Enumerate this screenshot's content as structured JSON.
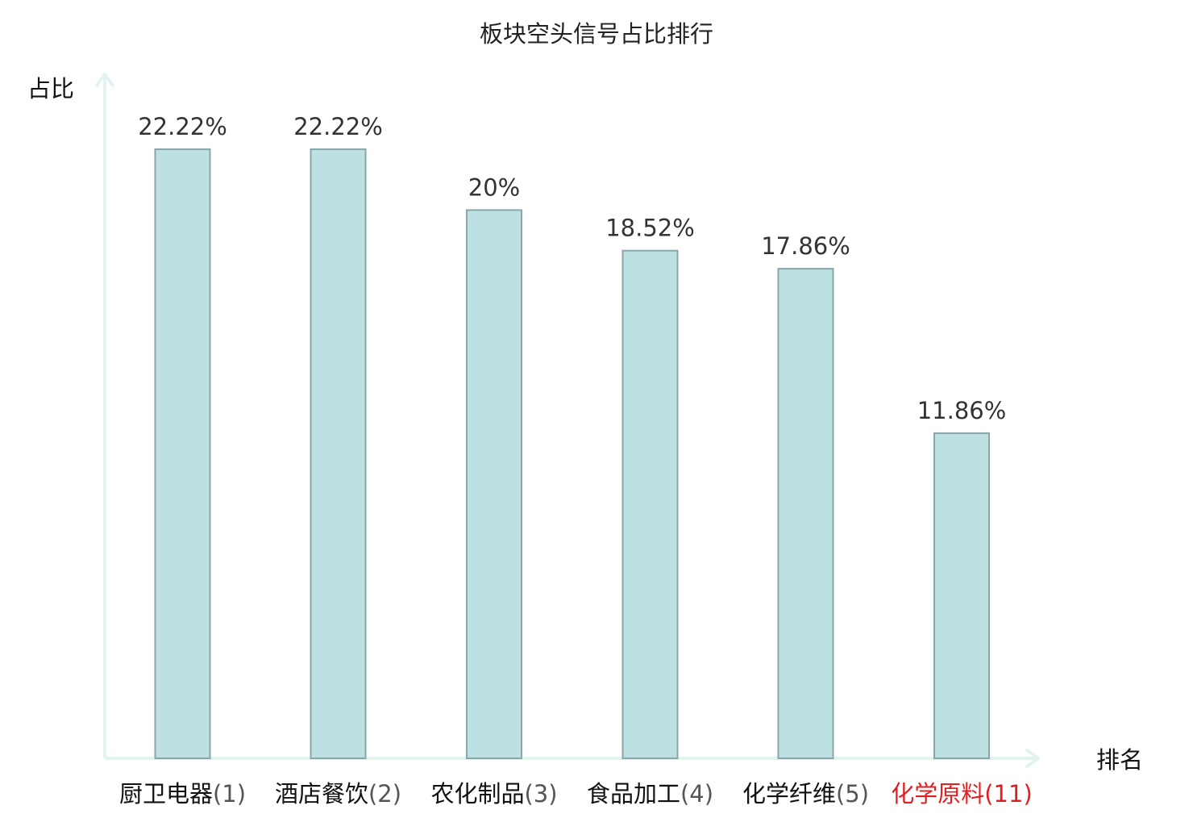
{
  "chart_data": {
    "type": "bar",
    "title": "板块空头信号占比排行",
    "xlabel": "排名",
    "ylabel": "占比",
    "categories": [
      "厨卫电器(1)",
      "酒店餐饮(2)",
      "农化制品(3)",
      "食品加工(4)",
      "化学纤维(5)",
      "化学原料(11)"
    ],
    "category_names": [
      "厨卫电器",
      "酒店餐饮",
      "农化制品",
      "食品加工",
      "化学纤维",
      "化学原料"
    ],
    "category_ranks": [
      "(1)",
      "(2)",
      "(3)",
      "(4)",
      "(5)",
      "(11)"
    ],
    "values": [
      22.22,
      22.22,
      20,
      18.52,
      17.86,
      11.86
    ],
    "value_labels": [
      "22.22%",
      "22.22%",
      "20%",
      "18.52%",
      "17.86%",
      "11.86%"
    ],
    "highlight_index": 5,
    "ylim": [
      0,
      25
    ],
    "grid": false,
    "legend": "none"
  },
  "colors": {
    "bar_fill": "#bde1e3",
    "bar_stroke": "#8aa6a8",
    "axis": "#e3f3f1",
    "highlight_text": "#e02020",
    "value_text": "#333333",
    "label_text": "#111111"
  }
}
